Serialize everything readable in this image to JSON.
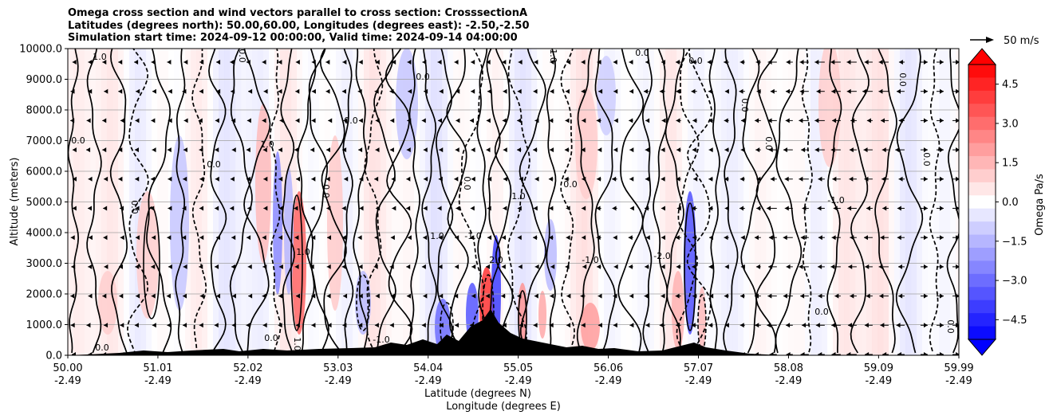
{
  "chart_data": {
    "type": "contour",
    "title_lines": [
      "Omega cross section and wind vectors parallel to cross section: CrosssectionA",
      "Latitudes (degrees north): 50.00,60.00, Longitudes (degrees east): -2.50,-2.50",
      "Simulation start time: 2024-09-12 00:00:00, Valid time: 2024-09-14 04:00:00"
    ],
    "ylabel": "Altitude (meters)",
    "xlabel_line1": "Latitude (degrees N)",
    "xlabel_line2": "Longitude (degrees E)",
    "ylim": [
      0,
      10000
    ],
    "xlim": [
      50.0,
      59.99
    ],
    "y_ticks": [
      "0.0",
      "1000.0",
      "2000.0",
      "3000.0",
      "4000.0",
      "5000.0",
      "6000.0",
      "7000.0",
      "8000.0",
      "9000.0",
      "10000.0"
    ],
    "x_ticks": [
      {
        "lat": "50.00",
        "lon": "-2.49"
      },
      {
        "lat": "51.01",
        "lon": "-2.49"
      },
      {
        "lat": "52.02",
        "lon": "-2.49"
      },
      {
        "lat": "53.03",
        "lon": "-2.49"
      },
      {
        "lat": "54.04",
        "lon": "-2.49"
      },
      {
        "lat": "55.05",
        "lon": "-2.49"
      },
      {
        "lat": "56.06",
        "lon": "-2.49"
      },
      {
        "lat": "57.07",
        "lon": "-2.49"
      },
      {
        "lat": "58.08",
        "lon": "-2.49"
      },
      {
        "lat": "59.09",
        "lon": "-2.49"
      },
      {
        "lat": "59.99",
        "lon": "-2.49"
      }
    ],
    "colorbar": {
      "label": "Omega Pa/s",
      "range": [
        -5.25,
        5.25
      ],
      "ticks": [
        "4.5",
        "3.0",
        "1.5",
        "0.0",
        "−1.5",
        "−3.0",
        "−4.5"
      ],
      "tick_values": [
        4.5,
        3.0,
        1.5,
        0.0,
        -1.5,
        -3.0,
        -4.5
      ]
    },
    "quiver_key": "50 m/s",
    "contour_labels": [
      "0.0",
      "1.0",
      "-1.0",
      "-2.0",
      "2.0"
    ],
    "colors": {
      "positive": "#ff0000",
      "negative": "#0000ff",
      "neutral": "#ffffff"
    }
  }
}
